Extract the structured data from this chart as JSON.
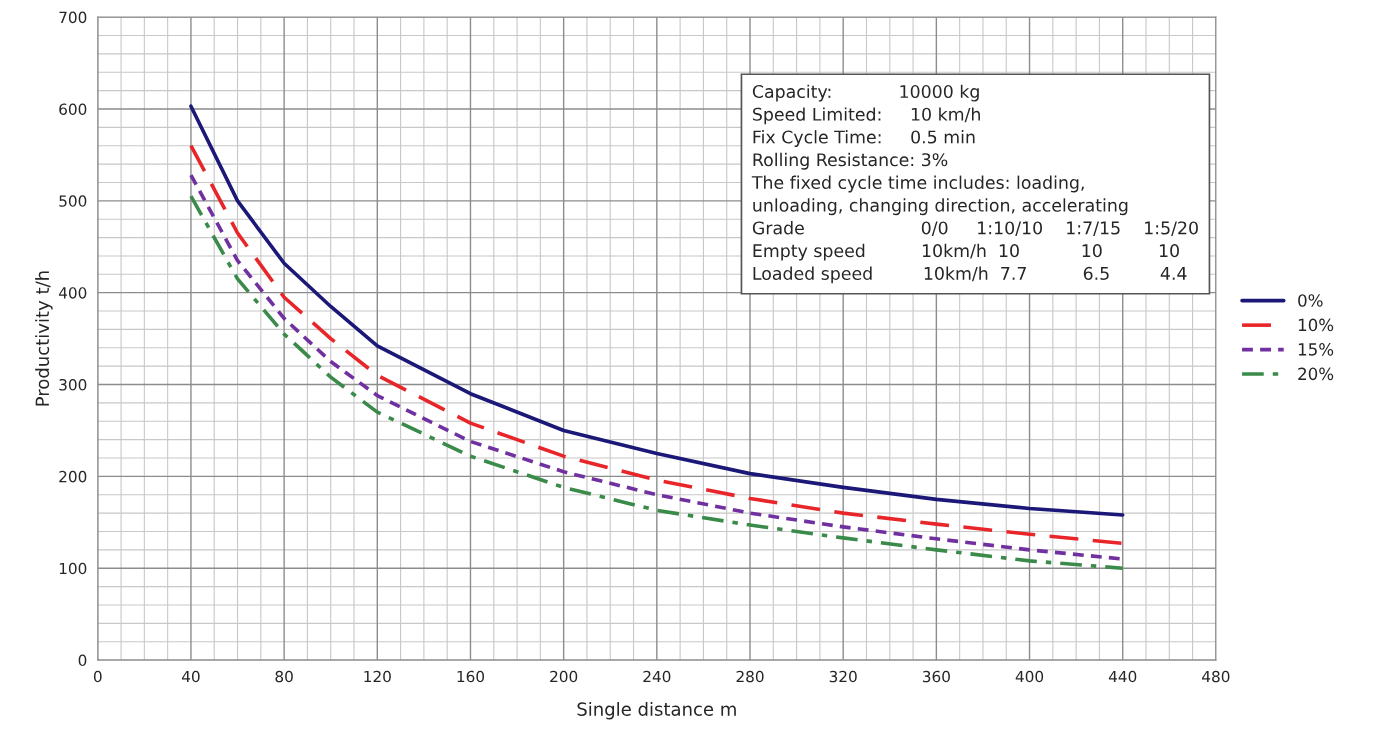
{
  "chart_data": {
    "type": "line",
    "xlabel": "Single distance m",
    "ylabel": "Productivity t/h",
    "x": [
      40,
      60,
      80,
      100,
      120,
      160,
      200,
      240,
      280,
      320,
      360,
      400,
      440
    ],
    "series": [
      {
        "name": "0%",
        "color": "#1c1878",
        "line_style": "solid",
        "values": [
          603,
          500,
          432,
          385,
          342,
          290,
          250,
          225,
          203,
          188,
          175,
          165,
          158
        ]
      },
      {
        "name": "10%",
        "color": "#e8262a",
        "line_style": "dashed",
        "values": [
          560,
          465,
          395,
          350,
          310,
          258,
          222,
          196,
          176,
          160,
          148,
          137,
          127
        ]
      },
      {
        "name": "15%",
        "color": "#7030a0",
        "line_style": "dotted",
        "values": [
          528,
          435,
          372,
          325,
          288,
          238,
          205,
          180,
          160,
          145,
          132,
          120,
          110
        ]
      },
      {
        "name": "20%",
        "color": "#3a8a4a",
        "line_style": "dashdot",
        "values": [
          505,
          415,
          355,
          308,
          270,
          222,
          188,
          163,
          147,
          133,
          120,
          108,
          100
        ]
      }
    ],
    "xlim": [
      0,
      480
    ],
    "xticks": [
      0,
      40,
      80,
      120,
      160,
      200,
      240,
      280,
      320,
      360,
      400,
      440,
      480
    ],
    "ylim": [
      0,
      700
    ],
    "yticks": [
      0,
      100,
      200,
      300,
      400,
      500,
      600,
      700
    ],
    "grid": true,
    "legend": "right",
    "annotations": [
      "Capacity:            10000 kg",
      "Speed Limited:     10 km/h",
      "Fix Cycle Time:     0.5 min",
      "Rolling Resistance: 3%",
      "The fixed cycle time includes: loading,",
      "unloading, changing direction, accelerating",
      "Grade                     0/0     1:10/10    1:7/15    1:5/20",
      "Empty speed          10km/h  10           10          10",
      "Loaded speed         10km/h  7.7          6.5         4.4"
    ]
  }
}
